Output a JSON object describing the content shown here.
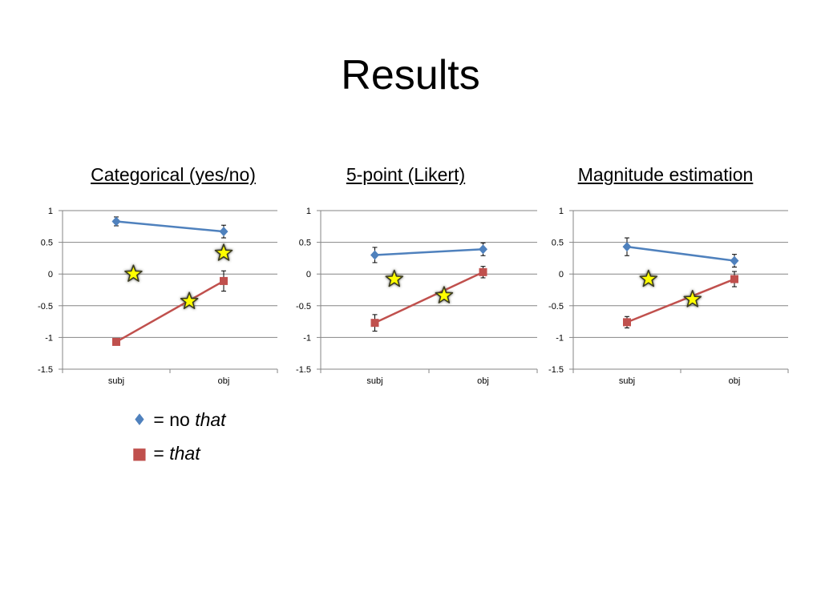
{
  "slide": {
    "title": "Results"
  },
  "legend": {
    "items": [
      {
        "symbol": "♦",
        "prefix": "= no ",
        "emphasis": "that",
        "color": "#4f81bd"
      },
      {
        "symbol": "■",
        "prefix": "= ",
        "emphasis": "that",
        "color": "#c0504d"
      }
    ]
  },
  "chart_data": [
    {
      "type": "line",
      "title": "Categorical (yes/no)",
      "categories": [
        "subj",
        "obj"
      ],
      "ylim": [
        -1.5,
        1
      ],
      "yticks": [
        1,
        0.5,
        0,
        -0.5,
        -1,
        -1.5
      ],
      "ytick_labels": [
        "1",
        "0.5",
        "0",
        "-0.5",
        "-1",
        "-1.5"
      ],
      "grid": true,
      "series": [
        {
          "marker": "diamond",
          "color": "#4f81bd",
          "values": [
            0.83,
            0.67
          ],
          "errors": [
            0.07,
            0.1
          ]
        },
        {
          "marker": "square",
          "color": "#c0504d",
          "values": [
            -1.07,
            -0.11
          ],
          "errors": [
            0.02,
            0.16
          ]
        }
      ],
      "annotations": [
        {
          "marker": "star",
          "x": 0.16,
          "y": 0.0
        },
        {
          "marker": "star",
          "x": 0.68,
          "y": -0.43
        },
        {
          "marker": "star",
          "x": 1.0,
          "y": 0.33
        }
      ]
    },
    {
      "type": "line",
      "title": "5-point (Likert)",
      "categories": [
        "subj",
        "obj"
      ],
      "ylim": [
        -1.5,
        1
      ],
      "yticks": [
        1,
        0.5,
        0,
        -0.5,
        -1,
        -1.5
      ],
      "ytick_labels": [
        "1",
        "0.5",
        "0",
        "-0.5",
        "-1",
        "-1.5"
      ],
      "grid": true,
      "series": [
        {
          "marker": "diamond",
          "color": "#4f81bd",
          "values": [
            0.3,
            0.39
          ],
          "errors": [
            0.12,
            0.1
          ]
        },
        {
          "marker": "square",
          "color": "#c0504d",
          "values": [
            -0.77,
            0.03
          ],
          "errors": [
            0.13,
            0.09
          ]
        }
      ],
      "annotations": [
        {
          "marker": "star",
          "x": 0.18,
          "y": -0.08
        },
        {
          "marker": "star",
          "x": 0.64,
          "y": -0.34
        }
      ]
    },
    {
      "type": "line",
      "title": "Magnitude estimation",
      "categories": [
        "subj",
        "obj"
      ],
      "ylim": [
        -1.5,
        1
      ],
      "yticks": [
        1,
        0.5,
        0,
        -0.5,
        -1,
        -1.5
      ],
      "ytick_labels": [
        "1",
        "0.5",
        "0",
        "-0.5",
        "-1",
        "-1.5"
      ],
      "grid": true,
      "series": [
        {
          "marker": "diamond",
          "color": "#4f81bd",
          "values": [
            0.43,
            0.21
          ],
          "errors": [
            0.14,
            0.1
          ]
        },
        {
          "marker": "square",
          "color": "#c0504d",
          "values": [
            -0.76,
            -0.08
          ],
          "errors": [
            0.09,
            0.12
          ]
        }
      ],
      "annotations": [
        {
          "marker": "star",
          "x": 0.2,
          "y": -0.08
        },
        {
          "marker": "star",
          "x": 0.61,
          "y": -0.4
        }
      ]
    }
  ]
}
